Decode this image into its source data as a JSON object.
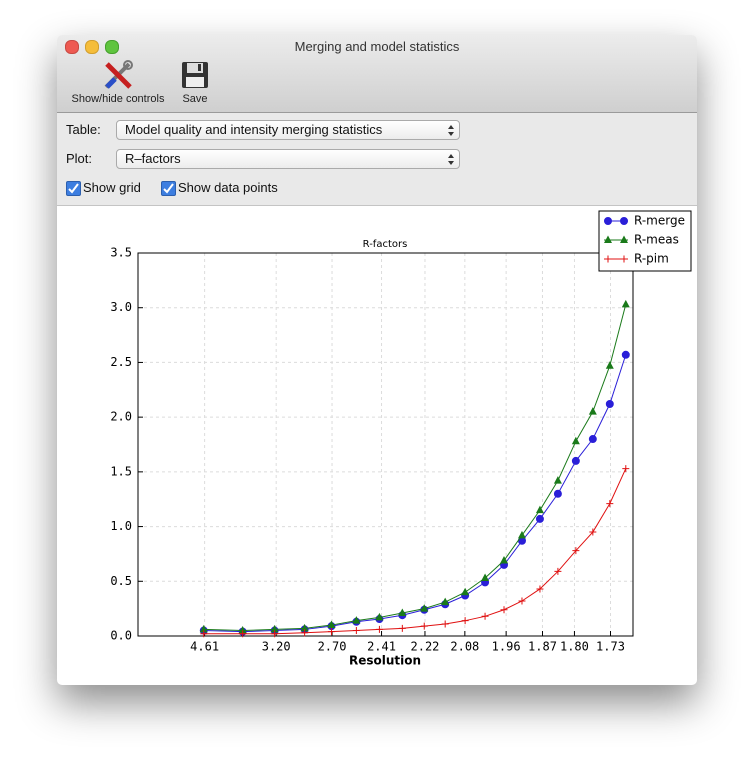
{
  "window": {
    "title": "Merging and model statistics"
  },
  "toolbar": {
    "buttons": [
      "Show/hide controls",
      "Save"
    ]
  },
  "controls": {
    "table_label": "Table:",
    "table_value": "Model quality and intensity merging statistics",
    "plot_label": "Plot:",
    "plot_value": "R–factors",
    "checkboxes": [
      {
        "label": "Show grid",
        "checked": true
      },
      {
        "label": "Show data points",
        "checked": true
      }
    ]
  },
  "chart_data": {
    "type": "line",
    "title": "R-factors",
    "x_label": "Resolution",
    "x": [
      0.0465,
      0.074,
      0.0966,
      0.1178,
      0.1368,
      0.1544,
      0.1707,
      0.1869,
      0.2024,
      0.2172,
      0.2313,
      0.2454,
      0.2588,
      0.2715,
      0.2842,
      0.2969,
      0.3096,
      0.3216,
      0.3336,
      0.3449
    ],
    "series": [
      {
        "name": "R-merge",
        "color": "#2a1fd8",
        "marker": "circle",
        "values": [
          0.05,
          0.04,
          0.05,
          0.06,
          0.09,
          0.13,
          0.155,
          0.19,
          0.24,
          0.29,
          0.37,
          0.49,
          0.65,
          0.87,
          1.07,
          1.3,
          1.6,
          1.8,
          2.12,
          2.57
        ]
      },
      {
        "name": "R-meas",
        "color": "#1a7a1a",
        "marker": "triangle",
        "values": [
          0.06,
          0.05,
          0.06,
          0.07,
          0.1,
          0.14,
          0.17,
          0.21,
          0.25,
          0.31,
          0.4,
          0.53,
          0.69,
          0.92,
          1.15,
          1.42,
          1.78,
          2.05,
          2.47,
          3.03
        ]
      },
      {
        "name": "R-pim",
        "color": "#e01010",
        "marker": "plus",
        "values": [
          0.02,
          0.02,
          0.02,
          0.03,
          0.04,
          0.05,
          0.06,
          0.07,
          0.09,
          0.11,
          0.14,
          0.18,
          0.24,
          0.32,
          0.43,
          0.59,
          0.78,
          0.95,
          1.21,
          1.53
        ]
      }
    ],
    "xlim": [
      0,
      0.35
    ],
    "xticks": [
      {
        "value": 0.0471,
        "label": "4.61"
      },
      {
        "value": 0.0977,
        "label": "3.20"
      },
      {
        "value": 0.1372,
        "label": "2.70"
      },
      {
        "value": 0.1722,
        "label": "2.41"
      },
      {
        "value": 0.2029,
        "label": "2.22"
      },
      {
        "value": 0.2311,
        "label": "2.08"
      },
      {
        "value": 0.2603,
        "label": "1.96"
      },
      {
        "value": 0.286,
        "label": "1.87"
      },
      {
        "value": 0.3086,
        "label": "1.80"
      },
      {
        "value": 0.3341,
        "label": "1.73"
      }
    ],
    "ylim": [
      0,
      3.5
    ],
    "yticks": [
      {
        "value": 0,
        "label": "0.0"
      },
      0.5,
      {
        "value": 1,
        "label": "1.0"
      },
      1.5,
      {
        "value": 2,
        "label": "2.0"
      },
      2.5,
      {
        "value": 3,
        "label": "3.0"
      },
      3.5
    ],
    "legend": "upper-right"
  }
}
